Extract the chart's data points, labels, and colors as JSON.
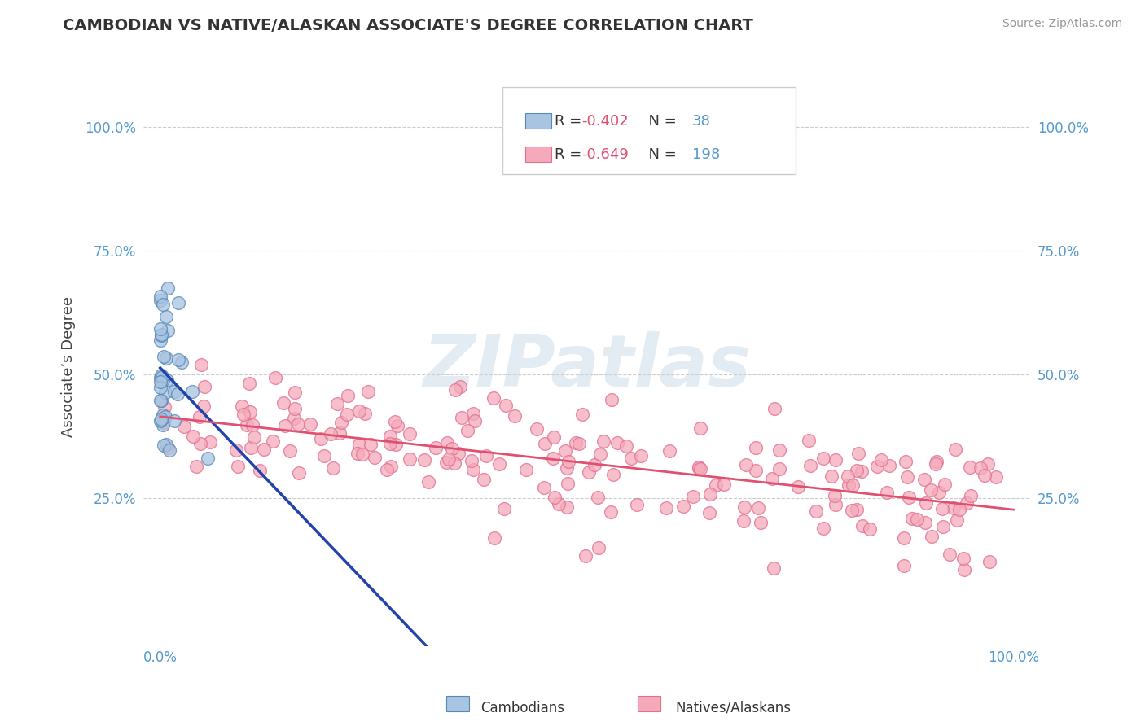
{
  "title": "CAMBODIAN VS NATIVE/ALASKAN ASSOCIATE'S DEGREE CORRELATION CHART",
  "source": "Source: ZipAtlas.com",
  "ylabel": "Associate’s Degree",
  "legend_label1": "Cambodians",
  "legend_label2": "Natives/Alaskans",
  "R1": -0.402,
  "N1": 38,
  "R2": -0.649,
  "N2": 198,
  "color_blue_fill": "#A8C4E0",
  "color_blue_edge": "#5588BB",
  "color_pink_fill": "#F5AABB",
  "color_pink_edge": "#E07090",
  "line_blue_color": "#2244AA",
  "line_pink_color": "#E05070",
  "axis_tick_color": "#5599CC",
  "title_color": "#333333",
  "grid_color": "#CCCCCC",
  "watermark_text": "ZIPatlas",
  "watermark_color": "#C8D8E8",
  "seed": 7,
  "xlim": [
    -0.02,
    1.02
  ],
  "ylim": [
    -0.05,
    1.08
  ]
}
